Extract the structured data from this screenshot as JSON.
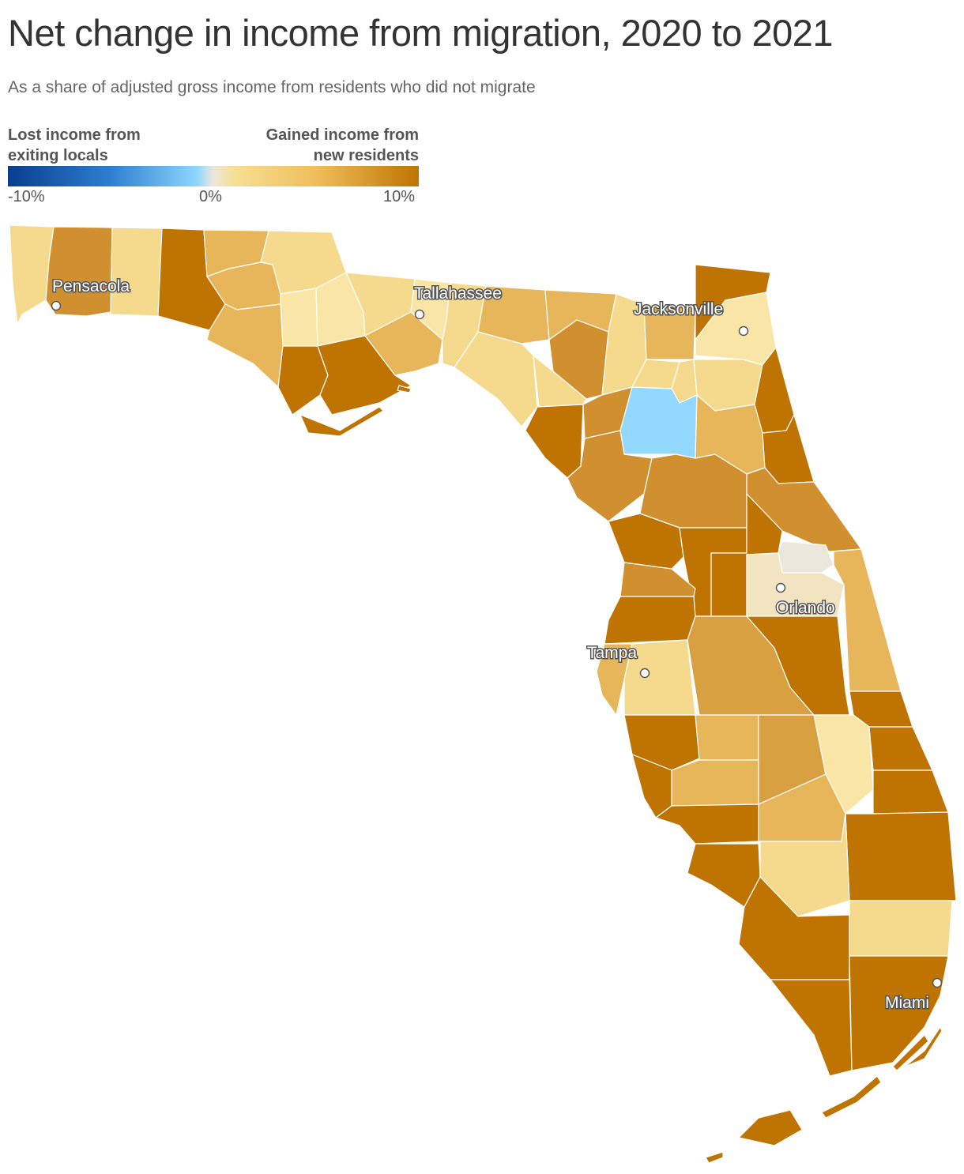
{
  "title": "Net change in income from migration, 2020 to 2021",
  "subtitle": "As a share of adjusted gross income from residents who did not migrate",
  "legend": {
    "left_label_line1": "Lost income from",
    "left_label_line2": "exiting locals",
    "right_label_line1": "Gained income from",
    "right_label_line2": "new residents",
    "ticks": [
      "-10%",
      "0%",
      "10%"
    ],
    "range": [
      -10,
      10
    ],
    "colors": {
      "min": "#0a3d8f",
      "mid": "#ece7dc",
      "max": "#bf7402",
      "negative_light": "#8dd6ff",
      "positive_light": "#f7df93"
    }
  },
  "cities": [
    "Pensacola",
    "Tallahassee",
    "Jacksonville",
    "Orlando",
    "Tampa",
    "Miami"
  ],
  "colors": {
    "very_high": "#bf7402",
    "high": "#d09030",
    "medium": "#e8b65a",
    "low": "#f5d98c",
    "very_low": "#f9e6a6",
    "near_zero": "#ece7dc",
    "negative": "#93d8ff"
  }
}
